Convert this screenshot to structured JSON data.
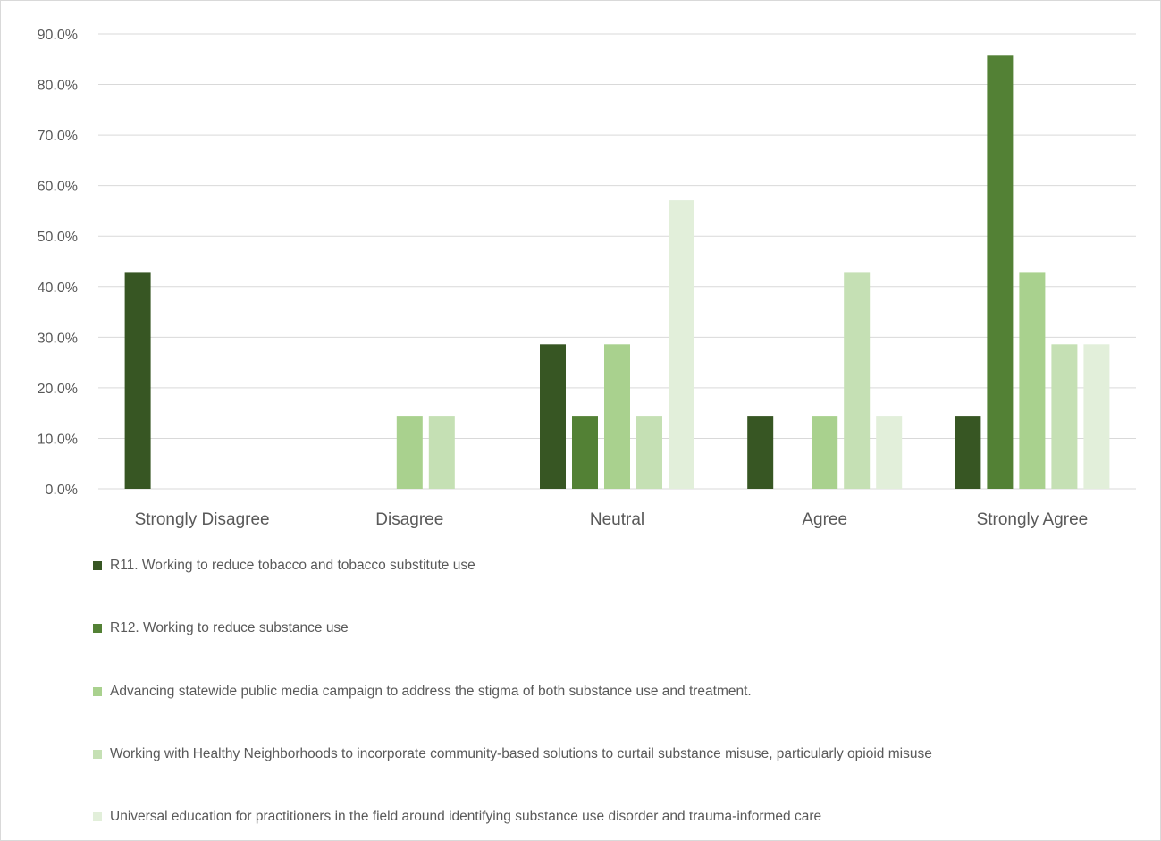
{
  "chart_data": {
    "type": "bar",
    "title": "",
    "xlabel": "",
    "ylabel": "",
    "ylim": [
      0,
      90
    ],
    "y_ticks": [
      "0.0%",
      "10.0%",
      "20.0%",
      "30.0%",
      "40.0%",
      "50.0%",
      "60.0%",
      "70.0%",
      "80.0%",
      "90.0%"
    ],
    "y_tick_values": [
      0,
      10,
      20,
      30,
      40,
      50,
      60,
      70,
      80,
      90
    ],
    "categories": [
      "Strongly Disagree",
      "Disagree",
      "Neutral",
      "Agree",
      "Strongly Agree"
    ],
    "grid": true,
    "legend_position": "bottom",
    "series": [
      {
        "name": "R11. Working to reduce tobacco and tobacco substitute use",
        "color": "#375623",
        "values": [
          42.9,
          0,
          28.6,
          14.3,
          14.3
        ]
      },
      {
        "name": "R12. Working to reduce substance use",
        "color": "#538135",
        "values": [
          0,
          0,
          14.3,
          0,
          85.7
        ]
      },
      {
        "name": "Advancing statewide public media campaign to address the stigma of both substance use and treatment.",
        "color": "#a9d18e",
        "values": [
          0,
          14.3,
          28.6,
          14.3,
          42.9
        ]
      },
      {
        "name": "Working with Healthy Neighborhoods to incorporate community-based solutions to curtail substance misuse, particularly opioid misuse",
        "color": "#c5e0b4",
        "values": [
          0,
          14.3,
          14.3,
          42.9,
          28.6
        ]
      },
      {
        "name": "Universal education for practitioners in the field around identifying substance use disorder and trauma-informed care",
        "color": "#e2efda",
        "values": [
          0,
          0,
          57.1,
          14.3,
          28.6
        ]
      }
    ]
  }
}
